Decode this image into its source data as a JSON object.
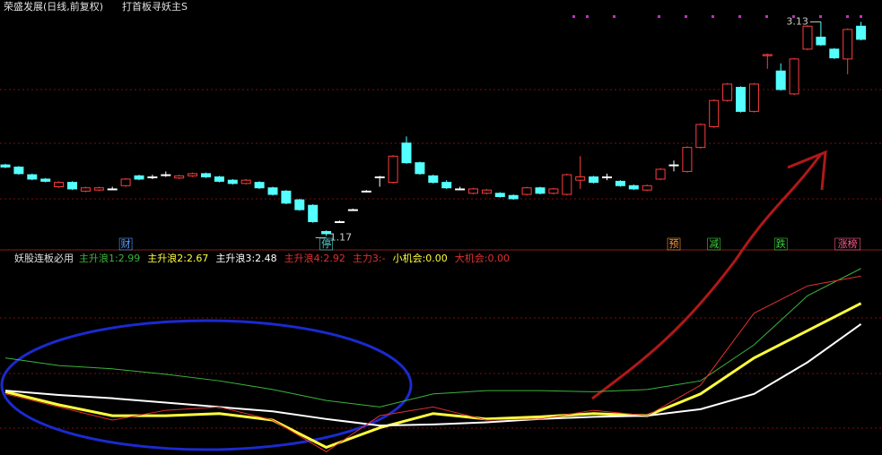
{
  "header": {
    "title": "荣盛发展(日线,前复权)",
    "indicator": "打首板寻妖主S"
  },
  "chart_data": [
    {
      "type": "candlestick",
      "ylim": [
        1.05,
        3.33
      ],
      "candles": [
        [
          1.82,
          1.83,
          1.79,
          1.8
        ],
        [
          1.8,
          1.81,
          1.73,
          1.74
        ],
        [
          1.73,
          1.74,
          1.68,
          1.69
        ],
        [
          1.69,
          1.7,
          1.66,
          1.67
        ],
        [
          1.62,
          1.67,
          1.61,
          1.66
        ],
        [
          1.66,
          1.67,
          1.59,
          1.6
        ],
        [
          1.58,
          1.62,
          1.57,
          1.61
        ],
        [
          1.59,
          1.62,
          1.58,
          1.61
        ],
        [
          1.6,
          1.62,
          1.59,
          1.6
        ],
        [
          1.63,
          1.7,
          1.62,
          1.69
        ],
        [
          1.72,
          1.73,
          1.68,
          1.69
        ],
        [
          1.71,
          1.73,
          1.69,
          1.71
        ],
        [
          1.73,
          1.76,
          1.71,
          1.73
        ],
        [
          1.7,
          1.73,
          1.69,
          1.72
        ],
        [
          1.72,
          1.75,
          1.71,
          1.74
        ],
        [
          1.74,
          1.75,
          1.7,
          1.71
        ],
        [
          1.71,
          1.72,
          1.66,
          1.67
        ],
        [
          1.68,
          1.69,
          1.64,
          1.65
        ],
        [
          1.65,
          1.69,
          1.64,
          1.68
        ],
        [
          1.66,
          1.67,
          1.6,
          1.61
        ],
        [
          1.61,
          1.62,
          1.54,
          1.55
        ],
        [
          1.58,
          1.59,
          1.46,
          1.47
        ],
        [
          1.5,
          1.51,
          1.4,
          1.41
        ],
        [
          1.45,
          1.46,
          1.29,
          1.3
        ],
        [
          1.21,
          1.22,
          1.17,
          1.19
        ],
        [
          1.3,
          1.31,
          1.29,
          1.3
        ],
        [
          1.41,
          1.42,
          1.4,
          1.41
        ],
        [
          1.58,
          1.59,
          1.57,
          1.58
        ],
        [
          1.71,
          1.72,
          1.62,
          1.71
        ],
        [
          1.66,
          1.91,
          1.65,
          1.9
        ],
        [
          2.02,
          2.08,
          1.83,
          1.84
        ],
        [
          1.84,
          1.85,
          1.73,
          1.74
        ],
        [
          1.72,
          1.73,
          1.65,
          1.66
        ],
        [
          1.66,
          1.68,
          1.6,
          1.61
        ],
        [
          1.6,
          1.62,
          1.59,
          1.6
        ],
        [
          1.56,
          1.61,
          1.55,
          1.6
        ],
        [
          1.56,
          1.6,
          1.55,
          1.59
        ],
        [
          1.56,
          1.57,
          1.52,
          1.53
        ],
        [
          1.54,
          1.55,
          1.5,
          1.51
        ],
        [
          1.55,
          1.62,
          1.54,
          1.61
        ],
        [
          1.61,
          1.62,
          1.55,
          1.56
        ],
        [
          1.56,
          1.61,
          1.55,
          1.6
        ],
        [
          1.55,
          1.74,
          1.54,
          1.73
        ],
        [
          1.68,
          1.9,
          1.6,
          1.71
        ],
        [
          1.71,
          1.72,
          1.65,
          1.66
        ],
        [
          1.71,
          1.74,
          1.68,
          1.71
        ],
        [
          1.67,
          1.68,
          1.62,
          1.63
        ],
        [
          1.63,
          1.64,
          1.59,
          1.6
        ],
        [
          1.59,
          1.64,
          1.58,
          1.63
        ],
        [
          1.69,
          1.79,
          1.68,
          1.78
        ],
        [
          1.82,
          1.86,
          1.76,
          1.82
        ],
        [
          1.76,
          1.99,
          1.75,
          1.98
        ],
        [
          1.98,
          2.2,
          1.97,
          2.19
        ],
        [
          2.17,
          2.42,
          2.16,
          2.41
        ],
        [
          2.41,
          2.57,
          2.4,
          2.56
        ],
        [
          2.53,
          2.54,
          2.3,
          2.31
        ],
        [
          2.31,
          2.57,
          2.3,
          2.56
        ],
        [
          2.82,
          2.84,
          2.7,
          2.83
        ],
        [
          2.68,
          2.75,
          2.5,
          2.51
        ],
        [
          2.47,
          2.8,
          2.46,
          2.79
        ],
        [
          2.88,
          3.1,
          2.87,
          3.09
        ],
        [
          2.99,
          3.13,
          2.91,
          2.92
        ],
        [
          2.88,
          2.89,
          2.79,
          2.8
        ],
        [
          2.79,
          3.07,
          2.65,
          3.06
        ],
        [
          3.09,
          3.13,
          2.96,
          2.97
        ]
      ],
      "up_color": "#ff3c3c",
      "down_color": "#54ffff",
      "doji_color": "#ffffff",
      "price_marks": [
        3.13,
        1.17
      ],
      "events": [
        {
          "x": 9,
          "label": "财",
          "color": "#5aa0ff"
        },
        {
          "x": 24,
          "label": "停",
          "color": "#54d0d0"
        },
        {
          "x": 50,
          "label": "预",
          "color": "#ff9a3c"
        },
        {
          "x": 53,
          "label": "减",
          "color": "#3cd23c"
        },
        {
          "x": 58,
          "label": "跌",
          "color": "#3cd23c"
        },
        {
          "x": 63,
          "label": "涨榜",
          "color": "#ff5a8c"
        }
      ]
    },
    {
      "type": "line",
      "title": "妖股连板必用",
      "ylim": [
        1.28,
        3.07
      ],
      "separator": ": ",
      "x": [
        0,
        4,
        8,
        12,
        16,
        20,
        24,
        28,
        32,
        36,
        40,
        44,
        48,
        52,
        56,
        60,
        64
      ],
      "series": [
        {
          "name": "主升浪1",
          "color": "#3cb43c",
          "values": [
            2.17,
            2.1,
            2.07,
            2.02,
            1.96,
            1.88,
            1.78,
            1.72,
            1.84,
            1.87,
            1.87,
            1.86,
            1.88,
            1.96,
            2.29,
            2.74,
            2.99
          ]
        },
        {
          "name": "主升浪2",
          "color": "#ffff3c",
          "values": [
            1.86,
            1.74,
            1.64,
            1.64,
            1.66,
            1.6,
            1.35,
            1.53,
            1.66,
            1.61,
            1.63,
            1.66,
            1.64,
            1.84,
            2.17,
            2.42,
            2.67
          ]
        },
        {
          "name": "主升浪3",
          "color": "#ffffff",
          "values": [
            1.87,
            1.83,
            1.8,
            1.76,
            1.72,
            1.68,
            1.61,
            1.55,
            1.56,
            1.58,
            1.61,
            1.63,
            1.64,
            1.7,
            1.84,
            2.13,
            2.48
          ]
        },
        {
          "name": "主升浪4",
          "color": "#e03030",
          "values": [
            1.84,
            1.72,
            1.6,
            1.69,
            1.72,
            1.6,
            1.31,
            1.64,
            1.72,
            1.6,
            1.61,
            1.69,
            1.64,
            1.92,
            2.58,
            2.83,
            2.92
          ]
        }
      ],
      "extras": [
        {
          "name": "主力3",
          "label": "-",
          "color": "#e03030"
        },
        {
          "name": "小机会",
          "value": {
            "value": 0,
            "label": "0.00"
          },
          "color": "#ffff3c"
        },
        {
          "name": "大机会",
          "value": {
            "value": 0,
            "label": "0.00"
          },
          "color": "#e03030"
        }
      ]
    }
  ]
}
